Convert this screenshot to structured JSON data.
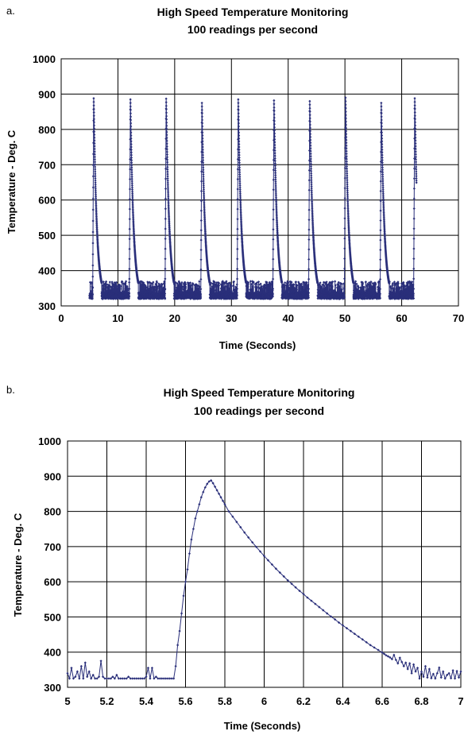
{
  "chart_data": [
    {
      "panel_label": "a.",
      "type": "scatter",
      "title": "High Speed Temperature Monitoring",
      "subtitle": "100 readings per second",
      "xlabel": "Time (Seconds)",
      "ylabel": "Temperature - Deg. C",
      "xlim": [
        0,
        70
      ],
      "ylim": [
        300,
        1000
      ],
      "xticks": [
        "0",
        "10",
        "20",
        "30",
        "40",
        "50",
        "60",
        "70"
      ],
      "yticks": [
        "300",
        "400",
        "500",
        "600",
        "700",
        "800",
        "900",
        "1000"
      ],
      "grid": "on",
      "legend": "none",
      "series_color": "#2a2f7a",
      "sampling_rate_per_second": 100,
      "baseline_range": [
        320,
        370
      ],
      "x_range": [
        5,
        62.6
      ],
      "peaks": [
        {
          "start": 5.55,
          "peak_time": 5.73,
          "peak_value": 888
        },
        {
          "start": 12.0,
          "peak_time": 12.2,
          "peak_value": 885
        },
        {
          "start": 18.3,
          "peak_time": 18.5,
          "peak_value": 887
        },
        {
          "start": 24.6,
          "peak_time": 24.8,
          "peak_value": 875
        },
        {
          "start": 31.0,
          "peak_time": 31.2,
          "peak_value": 885
        },
        {
          "start": 37.3,
          "peak_time": 37.5,
          "peak_value": 882
        },
        {
          "start": 43.6,
          "peak_time": 43.8,
          "peak_value": 880
        },
        {
          "start": 49.9,
          "peak_time": 50.1,
          "peak_value": 890
        },
        {
          "start": 56.2,
          "peak_time": 56.4,
          "peak_value": 875
        },
        {
          "start": 62.1,
          "peak_time": 62.3,
          "peak_value": 888
        }
      ]
    },
    {
      "panel_label": "b.",
      "type": "line",
      "title": "High Speed Temperature Monitoring",
      "subtitle": "100 readings per second",
      "xlabel": "Time (Seconds)",
      "ylabel": "Temperature - Deg. C",
      "xlim": [
        5,
        7
      ],
      "ylim": [
        300,
        1000
      ],
      "xticks": [
        "5",
        "5.2",
        "5.4",
        "5.6",
        "5.8",
        "6",
        "6.2",
        "6.4",
        "6.6",
        "6.8",
        "7"
      ],
      "yticks": [
        "300",
        "400",
        "500",
        "600",
        "700",
        "800",
        "900",
        "1000"
      ],
      "grid": "on",
      "legend": "none",
      "series_color": "#2a2f7a",
      "points": [
        [
          5.0,
          340
        ],
        [
          5.01,
          325
        ],
        [
          5.02,
          355
        ],
        [
          5.03,
          325
        ],
        [
          5.04,
          330
        ],
        [
          5.05,
          345
        ],
        [
          5.06,
          325
        ],
        [
          5.07,
          360
        ],
        [
          5.08,
          325
        ],
        [
          5.09,
          370
        ],
        [
          5.1,
          330
        ],
        [
          5.11,
          345
        ],
        [
          5.12,
          325
        ],
        [
          5.13,
          335
        ],
        [
          5.14,
          325
        ],
        [
          5.15,
          325
        ],
        [
          5.16,
          330
        ],
        [
          5.17,
          375
        ],
        [
          5.18,
          330
        ],
        [
          5.19,
          325
        ],
        [
          5.2,
          325
        ],
        [
          5.21,
          325
        ],
        [
          5.22,
          325
        ],
        [
          5.23,
          330
        ],
        [
          5.24,
          325
        ],
        [
          5.25,
          335
        ],
        [
          5.26,
          325
        ],
        [
          5.27,
          325
        ],
        [
          5.28,
          325
        ],
        [
          5.29,
          325
        ],
        [
          5.3,
          325
        ],
        [
          5.31,
          330
        ],
        [
          5.32,
          325
        ],
        [
          5.33,
          325
        ],
        [
          5.34,
          325
        ],
        [
          5.35,
          325
        ],
        [
          5.36,
          325
        ],
        [
          5.37,
          325
        ],
        [
          5.38,
          325
        ],
        [
          5.39,
          325
        ],
        [
          5.4,
          330
        ],
        [
          5.41,
          355
        ],
        [
          5.42,
          325
        ],
        [
          5.43,
          355
        ],
        [
          5.44,
          325
        ],
        [
          5.45,
          330
        ],
        [
          5.46,
          325
        ],
        [
          5.47,
          325
        ],
        [
          5.48,
          325
        ],
        [
          5.49,
          325
        ],
        [
          5.5,
          325
        ],
        [
          5.51,
          325
        ],
        [
          5.52,
          325
        ],
        [
          5.53,
          325
        ],
        [
          5.54,
          325
        ],
        [
          5.55,
          360
        ],
        [
          5.56,
          420
        ],
        [
          5.57,
          460
        ],
        [
          5.58,
          510
        ],
        [
          5.59,
          560
        ],
        [
          5.6,
          600
        ],
        [
          5.61,
          635
        ],
        [
          5.62,
          680
        ],
        [
          5.63,
          720
        ],
        [
          5.64,
          750
        ],
        [
          5.65,
          780
        ],
        [
          5.66,
          800
        ],
        [
          5.67,
          820
        ],
        [
          5.68,
          840
        ],
        [
          5.69,
          855
        ],
        [
          5.7,
          868
        ],
        [
          5.71,
          878
        ],
        [
          5.72,
          885
        ],
        [
          5.73,
          888
        ],
        [
          5.74,
          880
        ],
        [
          5.75,
          870
        ],
        [
          5.76,
          860
        ],
        [
          5.77,
          850
        ],
        [
          5.78,
          840
        ],
        [
          5.79,
          830
        ],
        [
          5.8,
          820
        ],
        [
          5.82,
          800
        ],
        [
          5.84,
          785
        ],
        [
          5.86,
          770
        ],
        [
          5.88,
          755
        ],
        [
          5.9,
          740
        ],
        [
          5.92,
          726
        ],
        [
          5.94,
          712
        ],
        [
          5.96,
          699
        ],
        [
          5.98,
          686
        ],
        [
          6.0,
          673
        ],
        [
          6.02,
          661
        ],
        [
          6.04,
          649
        ],
        [
          6.06,
          637
        ],
        [
          6.08,
          626
        ],
        [
          6.1,
          615
        ],
        [
          6.12,
          604
        ],
        [
          6.14,
          594
        ],
        [
          6.16,
          584
        ],
        [
          6.18,
          574
        ],
        [
          6.2,
          565
        ],
        [
          6.22,
          555
        ],
        [
          6.24,
          546
        ],
        [
          6.26,
          537
        ],
        [
          6.28,
          528
        ],
        [
          6.3,
          519
        ],
        [
          6.32,
          510
        ],
        [
          6.34,
          501
        ],
        [
          6.36,
          493
        ],
        [
          6.38,
          484
        ],
        [
          6.4,
          476
        ],
        [
          6.42,
          468
        ],
        [
          6.44,
          460
        ],
        [
          6.46,
          452
        ],
        [
          6.48,
          444
        ],
        [
          6.5,
          436
        ],
        [
          6.52,
          428
        ],
        [
          6.54,
          420
        ],
        [
          6.56,
          413
        ],
        [
          6.58,
          406
        ],
        [
          6.6,
          399
        ],
        [
          6.61,
          395
        ],
        [
          6.62,
          391
        ],
        [
          6.63,
          388
        ],
        [
          6.64,
          385
        ],
        [
          6.65,
          380
        ],
        [
          6.66,
          392
        ],
        [
          6.67,
          378
        ],
        [
          6.68,
          368
        ],
        [
          6.69,
          384
        ],
        [
          6.7,
          372
        ],
        [
          6.71,
          360
        ],
        [
          6.72,
          370
        ],
        [
          6.73,
          352
        ],
        [
          6.74,
          368
        ],
        [
          6.75,
          340
        ],
        [
          6.76,
          365
        ],
        [
          6.77,
          345
        ],
        [
          6.78,
          355
        ],
        [
          6.79,
          325
        ],
        [
          6.8,
          345
        ],
        [
          6.81,
          330
        ],
        [
          6.82,
          360
        ],
        [
          6.83,
          328
        ],
        [
          6.84,
          352
        ],
        [
          6.85,
          326
        ],
        [
          6.86,
          338
        ],
        [
          6.87,
          325
        ],
        [
          6.88,
          340
        ],
        [
          6.89,
          356
        ],
        [
          6.9,
          328
        ],
        [
          6.91,
          345
        ],
        [
          6.92,
          325
        ],
        [
          6.93,
          335
        ],
        [
          6.94,
          340
        ],
        [
          6.95,
          326
        ],
        [
          6.96,
          348
        ],
        [
          6.97,
          325
        ],
        [
          6.98,
          346
        ],
        [
          6.99,
          328
        ],
        [
          7.0,
          345
        ]
      ]
    }
  ]
}
